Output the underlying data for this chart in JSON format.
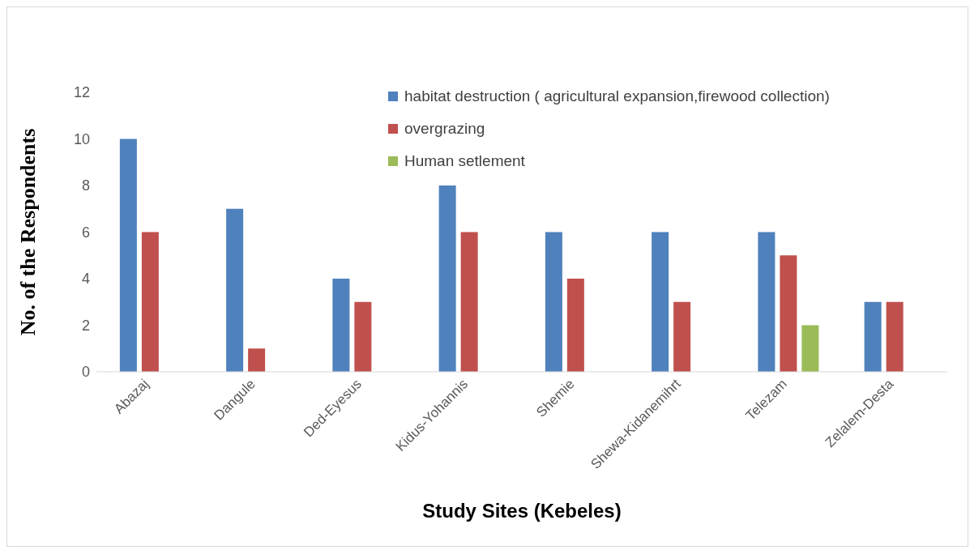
{
  "chart_data": {
    "type": "bar",
    "xlabel": "Study Sites (Kebeles)",
    "ylabel": "No. of the Respondents",
    "categories": [
      "Abazaj",
      "Dangule",
      "Ded-Eyesus",
      "Kidus-Yohannis",
      "Shemie",
      "Shewa-Kidanemihrt",
      "Telezam",
      "Zelalem-Desta"
    ],
    "series": [
      {
        "name": "habitat destruction ( agricultural expansion,firewood collection)",
        "color": "#4f81bd",
        "values": [
          10,
          7,
          4,
          8,
          6,
          6,
          6,
          3
        ]
      },
      {
        "name": "overgrazing",
        "color": "#c0504d",
        "values": [
          6,
          1,
          3,
          6,
          4,
          3,
          5,
          3
        ]
      },
      {
        "name": "Human setlement",
        "color": "#9bbb59",
        "values": [
          null,
          null,
          null,
          null,
          null,
          null,
          2,
          null
        ]
      }
    ],
    "ylim": [
      0,
      12
    ],
    "yticks": [
      0,
      2,
      4,
      6,
      8,
      10,
      12
    ],
    "grid": false,
    "legend": "top right"
  }
}
